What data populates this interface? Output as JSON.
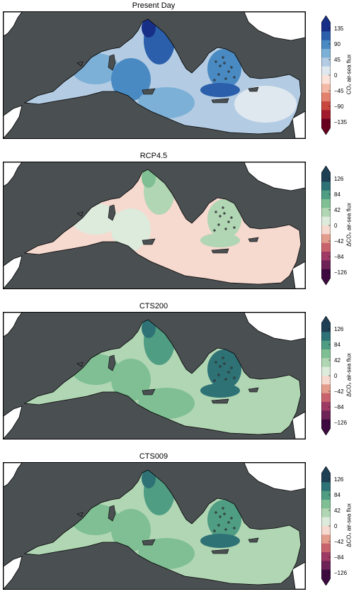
{
  "panels": [
    {
      "title": "Present Day",
      "colorbar_label": "CO₂ air-sea flux",
      "ticks": [
        "135",
        "90",
        "45",
        "0",
        "−45",
        "−90",
        "−135"
      ],
      "palette": "blue-red",
      "sea_levels": {
        "west": 0.35,
        "tyrrhenian": 0.55,
        "adriatic": 0.75,
        "aegean": 0.7,
        "east": 0.2
      }
    },
    {
      "title": "RCP4.5",
      "colorbar_label": "ΔCO₂ air-sea flux",
      "ticks": [
        "126",
        "84",
        "42",
        "0",
        "−42",
        "−84",
        "−126"
      ],
      "palette": "green-purple",
      "sea_levels": {
        "west": -0.08,
        "tyrrhenian": 0.05,
        "adriatic": 0.25,
        "aegean": 0.2,
        "east": -0.1
      }
    },
    {
      "title": "CTS200",
      "colorbar_label": "ΔCO₂ air-sea flux",
      "ticks": [
        "126",
        "84",
        "42",
        "0",
        "−42",
        "−84",
        "−126"
      ],
      "palette": "green-purple",
      "sea_levels": {
        "west": 0.35,
        "tyrrhenian": 0.5,
        "adriatic": 0.65,
        "aegean": 0.75,
        "east": 0.35
      }
    },
    {
      "title": "CTS009",
      "colorbar_label": "ΔCO₂ air-sea flux",
      "ticks": [
        "126",
        "84",
        "42",
        "0",
        "−42",
        "−84",
        "−126"
      ],
      "palette": "green-purple",
      "sea_levels": {
        "west": 0.3,
        "tyrrhenian": 0.45,
        "adriatic": 0.65,
        "aegean": 0.7,
        "east": 0.3
      }
    }
  ],
  "colors": {
    "land": "#4a4f52",
    "outside": "#ffffff",
    "coast": "#000000"
  }
}
